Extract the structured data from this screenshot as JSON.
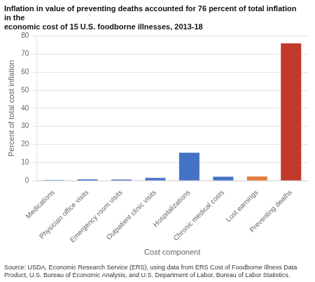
{
  "chart_data": {
    "type": "bar",
    "title": "Inflation in value of preventing deaths accounted for 76 percent of total inflation in the\neconomic cost of 15 U.S. foodborne illnesses, 2013-18",
    "source": "Source: USDA, Economic Research Service (ERS), using data from ERS Cost of Foodborne Illness Data\nProduct, U.S. Bureau of Economic Analysis, and U.S. Department of Labor, Bureau of Labor Statistics.",
    "ylabel": "Percent of total cost inflation",
    "xlabel": "Cost component",
    "categories": [
      "Medications",
      "Physician office visits",
      "Emergency room visits",
      "Outpatient clinic visits",
      "Hospitalizations",
      "Chronic medical costs",
      "Lost earnings",
      "Preventing deaths"
    ],
    "values": [
      0.4,
      0.8,
      0.7,
      1.5,
      15.5,
      2.2,
      2.3,
      76.0
    ],
    "colors": [
      "#4472c4",
      "#4472c4",
      "#4472c4",
      "#4472c4",
      "#4472c4",
      "#4472c4",
      "#e07b39",
      "#c0392b"
    ],
    "ylim": [
      0,
      80
    ],
    "yticks": [
      0,
      10,
      20,
      30,
      40,
      50,
      60,
      70,
      80
    ],
    "grid": true
  }
}
